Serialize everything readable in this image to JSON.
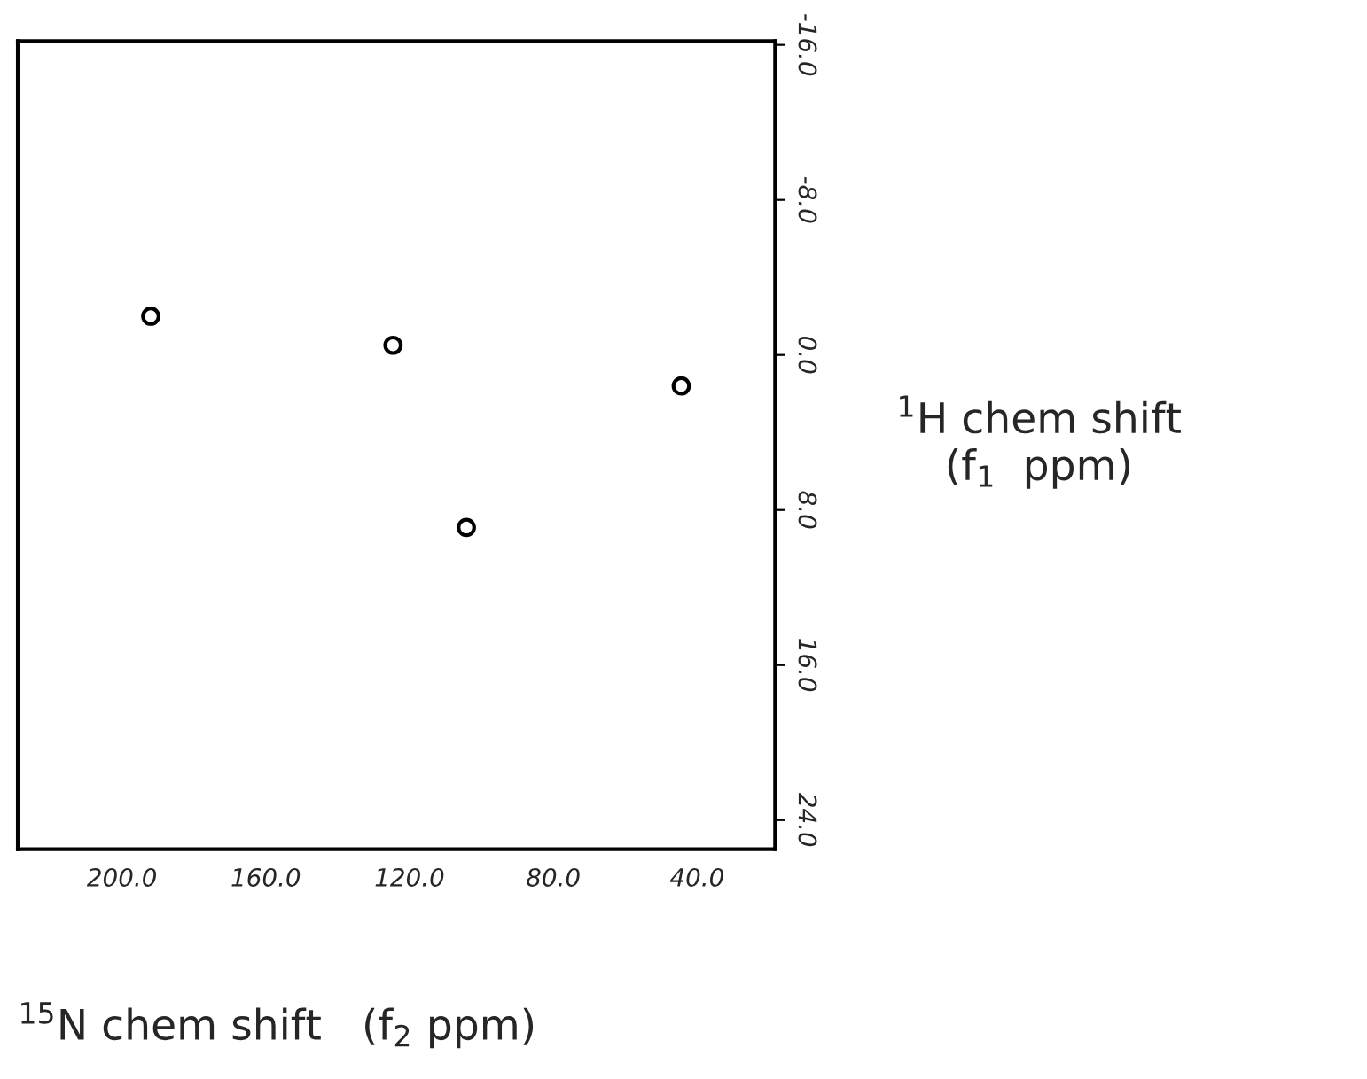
{
  "chart_data": {
    "type": "scatter",
    "xlabel": "$^{15}$N chem shift   (f$_{2}$ ppm)",
    "ylabel": "$^{1}$H chem shift\n(f$_{1}$  ppm)",
    "x": [
      192,
      124.6,
      104.2,
      44.4
    ],
    "values": [
      -2.0,
      -0.5,
      8.9,
      1.6
    ],
    "color": "#000000",
    "xlim": [
      229,
      18.3
    ],
    "ylim": [
      25.5,
      -16.2
    ],
    "xticks": [
      {
        "value": 200,
        "label": "200.0"
      },
      {
        "value": 160,
        "label": "160.0"
      },
      {
        "value": 120,
        "label": "120.0"
      },
      {
        "value": 80,
        "label": "80.0"
      },
      {
        "value": 40,
        "label": "40.0"
      }
    ],
    "yticks": [
      {
        "value": -16,
        "label": "-16.0"
      },
      {
        "value": -8,
        "label": "-8.0"
      },
      {
        "value": 0,
        "label": "0.0"
      },
      {
        "value": 8,
        "label": "8.0"
      },
      {
        "value": 16,
        "label": "16.0"
      },
      {
        "value": 24,
        "label": "24.0"
      }
    ],
    "marker": "circle",
    "grid": false,
    "legend": false
  }
}
